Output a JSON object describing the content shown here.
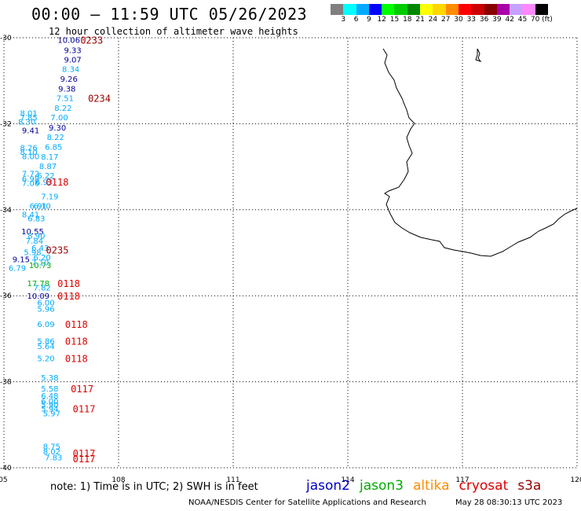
{
  "header": {
    "title": "00:00 — 11:59 UTC 05/26/2023",
    "subtitle": "12 hour collection of altimeter wave heights"
  },
  "colorbar": {
    "colors": [
      "#808080",
      "#00ffff",
      "#00aaff",
      "#0000ff",
      "#00ff00",
      "#00cc00",
      "#008800",
      "#ffff00",
      "#ffd700",
      "#ff8c00",
      "#ff0000",
      "#cc0000",
      "#880000",
      "#aa00aa",
      "#c8a0ff",
      "#ff88ff",
      "#000000"
    ],
    "labels": [
      "3",
      "6",
      "9",
      "12",
      "15",
      "18",
      "21",
      "24",
      "27",
      "30",
      "33",
      "36",
      "39",
      "42",
      "45",
      "70 (ft)"
    ]
  },
  "map": {
    "lon_range": [
      105,
      120
    ],
    "lat_range": [
      -40,
      -30
    ],
    "lon_ticks": [
      "105",
      "108",
      "111",
      "114",
      "117",
      "120"
    ],
    "lat_ticks": [
      "-30",
      "-32",
      "-34",
      "-36",
      "-38",
      "-40"
    ],
    "series_colors": {
      "jason2": "#0000cc",
      "jason3": "#00aa00",
      "altika": "#ff8c00",
      "cryosat": "#dd0000",
      "s3a": "#990000"
    },
    "wave_labels": [
      {
        "lon": 106.7,
        "lat": -30.05,
        "value": "10.06",
        "color": "#000099"
      },
      {
        "lon": 106.8,
        "lat": -30.28,
        "value": "9.33",
        "color": "#000099"
      },
      {
        "lon": 106.8,
        "lat": -30.5,
        "value": "9.07",
        "color": "#000099"
      },
      {
        "lon": 106.75,
        "lat": -30.72,
        "value": "8.34",
        "color": "#00aaff"
      },
      {
        "lon": 106.7,
        "lat": -30.95,
        "value": "9.26",
        "color": "#000099"
      },
      {
        "lon": 106.65,
        "lat": -31.18,
        "value": "9.38",
        "color": "#000099"
      },
      {
        "lon": 106.6,
        "lat": -31.4,
        "value": "7.51",
        "color": "#00aaff"
      },
      {
        "lon": 106.55,
        "lat": -31.63,
        "value": "8.22",
        "color": "#00aaff"
      },
      {
        "lon": 106.45,
        "lat": -31.85,
        "value": "7.00",
        "color": "#00aaff"
      },
      {
        "lon": 106.4,
        "lat": -32.08,
        "value": "9.30",
        "color": "#000099"
      },
      {
        "lon": 106.35,
        "lat": -32.3,
        "value": "8.22",
        "color": "#00aaff"
      },
      {
        "lon": 106.3,
        "lat": -32.53,
        "value": "6.85",
        "color": "#00aaff"
      },
      {
        "lon": 106.2,
        "lat": -32.76,
        "value": "8.17",
        "color": "#00aaff"
      },
      {
        "lon": 106.15,
        "lat": -32.98,
        "value": "8.87",
        "color": "#00aaff"
      },
      {
        "lon": 106.1,
        "lat": -33.2,
        "value": "6.22",
        "color": "#00aaff"
      },
      {
        "lon": 106.05,
        "lat": -33.35,
        "value": "6.93",
        "color": "#00aaff"
      },
      {
        "lon": 106.2,
        "lat": -33.68,
        "value": "7.19",
        "color": "#00aaff"
      },
      {
        "lon": 106.0,
        "lat": -33.9,
        "value": "6.10",
        "color": "#00aaff"
      },
      {
        "lon": 105.65,
        "lat": -31.75,
        "value": "8.01",
        "color": "#00aaff"
      },
      {
        "lon": 105.65,
        "lat": -31.85,
        "value": "7.85",
        "color": "#00aaff"
      },
      {
        "lon": 105.6,
        "lat": -31.95,
        "value": "8.30",
        "color": "#00aaff"
      },
      {
        "lon": 105.7,
        "lat": -32.15,
        "value": "9.41",
        "color": "#000099"
      },
      {
        "lon": 105.65,
        "lat": -32.55,
        "value": "8.26",
        "color": "#00aaff"
      },
      {
        "lon": 105.65,
        "lat": -32.65,
        "value": "8.10",
        "color": "#00aaff"
      },
      {
        "lon": 105.7,
        "lat": -32.75,
        "value": "8.00",
        "color": "#00aaff"
      },
      {
        "lon": 105.7,
        "lat": -33.15,
        "value": "7.72",
        "color": "#00aaff"
      },
      {
        "lon": 105.7,
        "lat": -33.27,
        "value": "6.98",
        "color": "#00aaff"
      },
      {
        "lon": 105.7,
        "lat": -33.37,
        "value": "7.06",
        "color": "#00aaff"
      },
      {
        "lon": 105.9,
        "lat": -33.9,
        "value": "6.91",
        "color": "#00aaff"
      },
      {
        "lon": 105.7,
        "lat": -34.1,
        "value": "8.41",
        "color": "#00aaff"
      },
      {
        "lon": 105.85,
        "lat": -34.2,
        "value": "6.83",
        "color": "#00aaff"
      },
      {
        "lon": 105.75,
        "lat": -34.5,
        "value": "10.55",
        "color": "#000099"
      },
      {
        "lon": 105.85,
        "lat": -34.6,
        "value": "8.90",
        "color": "#00aaff"
      },
      {
        "lon": 105.8,
        "lat": -34.72,
        "value": "7.84",
        "color": "#00aaff"
      },
      {
        "lon": 105.95,
        "lat": -34.88,
        "value": "6.43",
        "color": "#00aaff"
      },
      {
        "lon": 105.75,
        "lat": -34.98,
        "value": "5.98",
        "color": "#00aaff"
      },
      {
        "lon": 106.0,
        "lat": -35.1,
        "value": "6.20",
        "color": "#00aaff"
      },
      {
        "lon": 105.45,
        "lat": -35.15,
        "value": "9.15",
        "color": "#000099"
      },
      {
        "lon": 105.95,
        "lat": -35.28,
        "value": "10.73",
        "color": "#00aa00"
      },
      {
        "lon": 105.95,
        "lat": -35.22,
        "value": "7.10",
        "color": "#00aaff"
      },
      {
        "lon": 105.35,
        "lat": -35.35,
        "value": "6.79",
        "color": "#00aaff"
      },
      {
        "lon": 105.9,
        "lat": -35.7,
        "value": "17.78",
        "color": "#00aa00"
      },
      {
        "lon": 106.0,
        "lat": -35.8,
        "value": "7.82",
        "color": "#00aaff"
      },
      {
        "lon": 105.9,
        "lat": -36.0,
        "value": "10.09",
        "color": "#000099"
      },
      {
        "lon": 106.1,
        "lat": -36.15,
        "value": "6.00",
        "color": "#00aaff"
      },
      {
        "lon": 106.1,
        "lat": -36.3,
        "value": "5.96",
        "color": "#00aaff"
      },
      {
        "lon": 106.1,
        "lat": -36.65,
        "value": "6.09",
        "color": "#00aaff"
      },
      {
        "lon": 106.1,
        "lat": -37.05,
        "value": "5.86",
        "color": "#00aaff"
      },
      {
        "lon": 106.1,
        "lat": -37.17,
        "value": "5.64",
        "color": "#00aaff"
      },
      {
        "lon": 106.1,
        "lat": -37.45,
        "value": "5.20",
        "color": "#00aaff"
      },
      {
        "lon": 106.2,
        "lat": -37.9,
        "value": "5.38",
        "color": "#00aaff"
      },
      {
        "lon": 106.2,
        "lat": -38.15,
        "value": "5.58",
        "color": "#00aaff"
      },
      {
        "lon": 106.2,
        "lat": -38.32,
        "value": "6.48",
        "color": "#00aaff"
      },
      {
        "lon": 106.2,
        "lat": -38.45,
        "value": "6.00",
        "color": "#00aaff"
      },
      {
        "lon": 106.2,
        "lat": -38.53,
        "value": "5.90",
        "color": "#00aaff"
      },
      {
        "lon": 106.2,
        "lat": -38.62,
        "value": "5.94",
        "color": "#00aaff"
      },
      {
        "lon": 106.25,
        "lat": -38.73,
        "value": "5.97",
        "color": "#00aaff"
      },
      {
        "lon": 106.25,
        "lat": -39.5,
        "value": "8.75",
        "color": "#00aaff"
      },
      {
        "lon": 106.25,
        "lat": -39.62,
        "value": "8.02",
        "color": "#00aaff"
      },
      {
        "lon": 106.3,
        "lat": -39.75,
        "value": "7.83",
        "color": "#00aaff"
      }
    ],
    "time_labels": [
      {
        "lon": 107.0,
        "lat": -30.05,
        "value": "0233",
        "color": "#990000"
      },
      {
        "lon": 107.2,
        "lat": -31.4,
        "value": "0234",
        "color": "#990000"
      },
      {
        "lon": 106.1,
        "lat": -33.35,
        "value": "0118",
        "color": "#dd0000"
      },
      {
        "lon": 106.1,
        "lat": -34.93,
        "value": "0235",
        "color": "#990000"
      },
      {
        "lon": 106.4,
        "lat": -35.7,
        "value": "0118",
        "color": "#dd0000"
      },
      {
        "lon": 106.4,
        "lat": -36.0,
        "value": "0118",
        "color": "#dd0000"
      },
      {
        "lon": 106.6,
        "lat": -36.65,
        "value": "0118",
        "color": "#dd0000"
      },
      {
        "lon": 106.6,
        "lat": -37.05,
        "value": "0118",
        "color": "#dd0000"
      },
      {
        "lon": 106.6,
        "lat": -37.45,
        "value": "0118",
        "color": "#dd0000"
      },
      {
        "lon": 106.75,
        "lat": -38.15,
        "value": "0117",
        "color": "#dd0000"
      },
      {
        "lon": 106.8,
        "lat": -38.62,
        "value": "0117",
        "color": "#dd0000"
      },
      {
        "lon": 106.8,
        "lat": -39.65,
        "value": "0117",
        "color": "#dd0000"
      },
      {
        "lon": 106.8,
        "lat": -39.78,
        "value": "0117",
        "color": "#dd0000"
      }
    ]
  },
  "note": "note: 1) Time is in UTC; 2) SWH is in feet",
  "legend": [
    {
      "name": "jason2",
      "color": "#0000cc"
    },
    {
      "name": "jason3",
      "color": "#00aa00"
    },
    {
      "name": "altika",
      "color": "#ff8c00"
    },
    {
      "name": "cryosat",
      "color": "#dd0000"
    },
    {
      "name": "s3a",
      "color": "#990000"
    }
  ],
  "footer": {
    "left": "NOAA/NESDIS Center for Satellite Applications and Research",
    "right": "May 28 08:30:13 UTC 2023"
  }
}
